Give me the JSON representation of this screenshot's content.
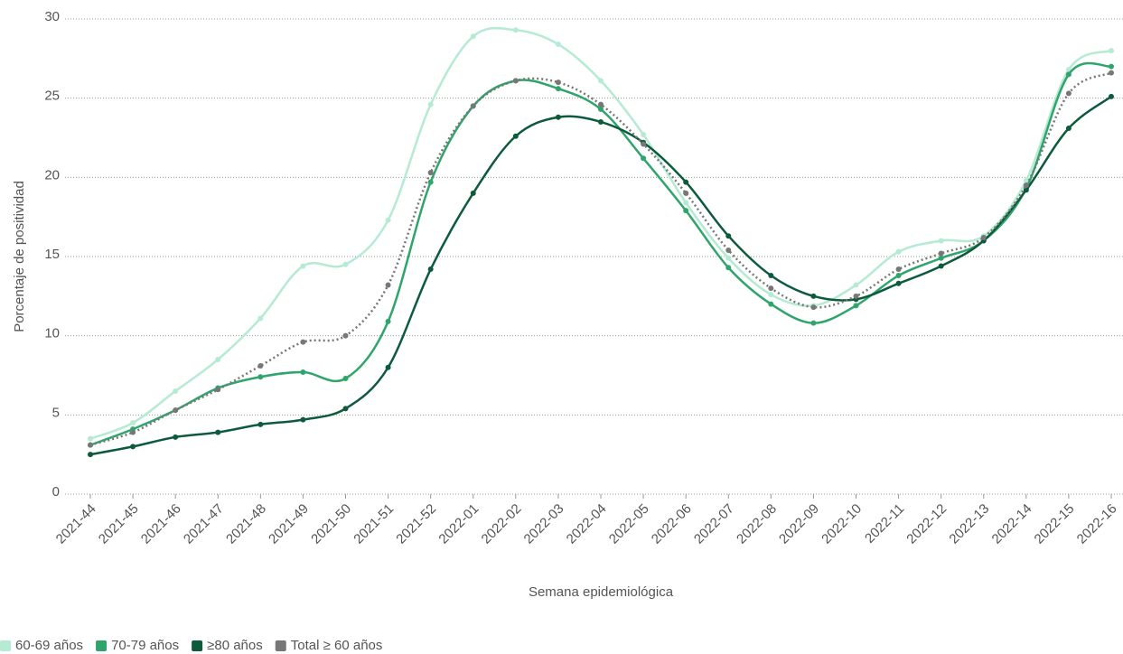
{
  "chart_data": {
    "type": "line",
    "x_label": "Semana epidemiológica",
    "y_label": "Porcentaje de positividad",
    "categories": [
      "2021-44",
      "2021-45",
      "2021-46",
      "2021-47",
      "2021-48",
      "2021-49",
      "2021-50",
      "2021-51",
      "2021-52",
      "2022-01",
      "2022-02",
      "2022-03",
      "2022-04",
      "2022-05",
      "2022-06",
      "2022-07",
      "2022-08",
      "2022-09",
      "2022-10",
      "2022-11",
      "2022-12",
      "2022-13",
      "2022-14",
      "2022-15",
      "2022-16"
    ],
    "series": [
      {
        "name": "60-69 años",
        "color": "#b5ead3",
        "line_style": "solid",
        "values": [
          3.5,
          4.5,
          6.5,
          8.5,
          11.1,
          14.4,
          14.5,
          17.3,
          24.6,
          28.9,
          29.3,
          28.4,
          26.1,
          22.7,
          18.4,
          14.9,
          12.6,
          11.9,
          13.2,
          15.3,
          16.0,
          16.3,
          19.8,
          26.8,
          28.0
        ]
      },
      {
        "name": "70-79 años",
        "color": "#2fa56c",
        "line_style": "solid",
        "values": [
          3.1,
          4.1,
          5.3,
          6.7,
          7.4,
          7.7,
          7.3,
          10.9,
          19.7,
          24.5,
          26.1,
          25.6,
          24.3,
          21.2,
          17.9,
          14.3,
          12.0,
          10.8,
          11.9,
          13.8,
          14.9,
          16.0,
          19.3,
          26.5,
          27.0
        ]
      },
      {
        "name": "≥80 años",
        "color": "#0e5a3d",
        "line_style": "solid",
        "values": [
          2.5,
          3.0,
          3.6,
          3.9,
          4.4,
          4.7,
          5.4,
          8.0,
          14.2,
          19.0,
          22.6,
          23.8,
          23.5,
          22.2,
          19.7,
          16.3,
          13.8,
          12.5,
          12.3,
          13.3,
          14.4,
          16.0,
          19.2,
          23.1,
          25.1
        ]
      },
      {
        "name": "Total ≥ 60 años",
        "color": "#777777",
        "line_style": "dotted",
        "values": [
          3.1,
          3.9,
          5.3,
          6.6,
          8.1,
          9.6,
          10.0,
          13.2,
          20.3,
          24.5,
          26.1,
          26.0,
          24.6,
          22.1,
          19.0,
          15.4,
          13.0,
          11.8,
          12.5,
          14.2,
          15.2,
          16.2,
          19.5,
          25.3,
          26.6
        ]
      }
    ],
    "ylim": [
      0,
      30
    ],
    "yticks": [
      0,
      5,
      10,
      15,
      20,
      25,
      30
    ],
    "grid": true,
    "smooth": true,
    "legend": "bottom-left"
  }
}
